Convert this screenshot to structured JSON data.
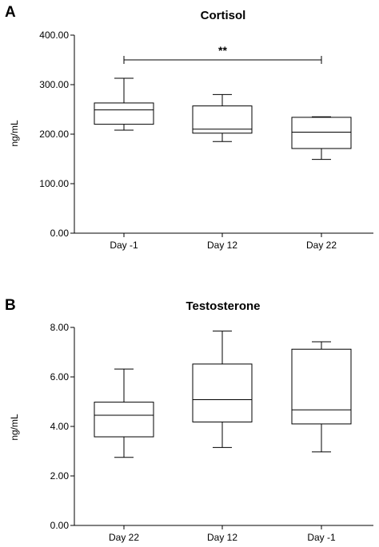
{
  "panels": {
    "a": {
      "letter": "A"
    },
    "b": {
      "letter": "B"
    }
  },
  "chart_data": [
    {
      "type": "box",
      "title": "Cortisol",
      "xlabel": "",
      "ylabel": "ng/mL",
      "ylim": [
        0,
        400
      ],
      "yticks": [
        0,
        100,
        200,
        300,
        400
      ],
      "ytick_labels": [
        "0.00",
        "100.00",
        "200.00",
        "300.00",
        "400.00"
      ],
      "categories": [
        "Day -1",
        "Day 12",
        "Day 22"
      ],
      "boxes": [
        {
          "min": 208,
          "q1": 220,
          "median": 249,
          "q3": 263,
          "max": 313
        },
        {
          "min": 185,
          "q1": 202,
          "median": 210,
          "q3": 257,
          "max": 280
        },
        {
          "min": 149,
          "q1": 171,
          "median": 204,
          "q3": 234,
          "max": 235
        }
      ],
      "annotations": [
        {
          "text": "**",
          "from_category": "Day -1",
          "to_category": "Day 22",
          "y": 350
        }
      ],
      "grid": false
    },
    {
      "type": "box",
      "title": "Testosterone",
      "xlabel": "",
      "ylabel": "ng/mL",
      "ylim": [
        0,
        8
      ],
      "yticks": [
        0,
        2,
        4,
        6,
        8
      ],
      "ytick_labels": [
        "0.00",
        "2.00",
        "4.00",
        "6.00",
        "8.00"
      ],
      "categories": [
        "Day 22",
        "Day 12",
        "Day -1"
      ],
      "boxes": [
        {
          "min": 2.75,
          "q1": 3.58,
          "median": 4.45,
          "q3": 4.98,
          "max": 6.32
        },
        {
          "min": 3.15,
          "q1": 4.18,
          "median": 5.08,
          "q3": 6.52,
          "max": 7.85
        },
        {
          "min": 2.97,
          "q1": 4.1,
          "median": 4.67,
          "q3": 7.12,
          "max": 7.42
        }
      ],
      "annotations": [],
      "grid": false
    }
  ]
}
